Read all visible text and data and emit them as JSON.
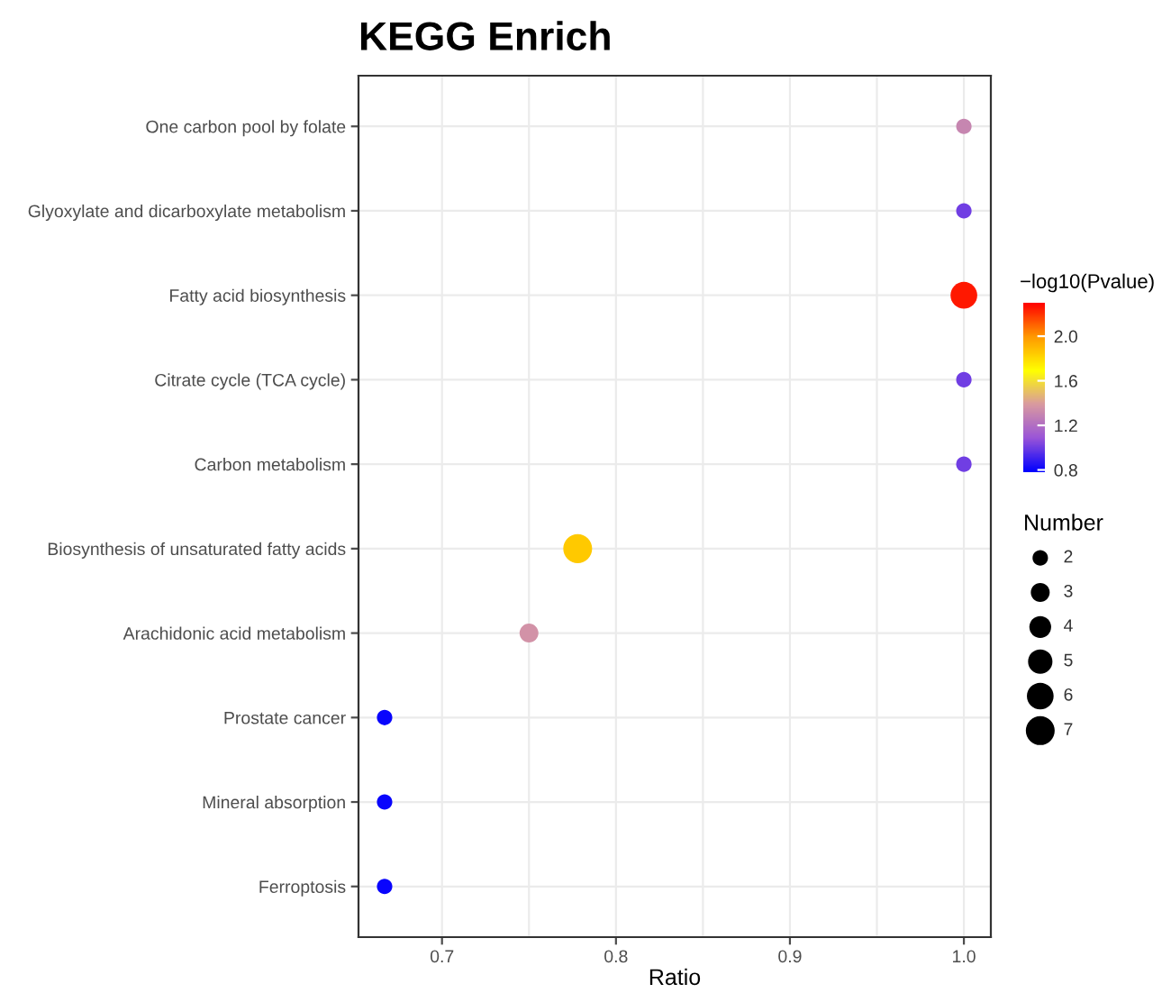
{
  "chart_data": {
    "type": "bubble",
    "title": "KEGG Enrich",
    "xlabel": "Ratio",
    "clabel": "−log10(Pvalue)",
    "legend_title": "Number",
    "orientation": "horizontal",
    "categories": [
      "One carbon pool by folate",
      "Glyoxylate and dicarboxylate metabolism",
      "Fatty acid biosynthesis",
      "Citrate cycle (TCA cycle)",
      "Carbon metabolism",
      "Biosynthesis of unsaturated fatty acids",
      "Arachidonic acid metabolism",
      "Prostate cancer",
      "Mineral absorption",
      "Ferroptosis"
    ],
    "values": [
      1.0,
      1.0,
      1.0,
      1.0,
      1.0,
      0.778,
      0.75,
      0.667,
      0.667,
      0.667
    ],
    "sizes": [
      2,
      2,
      6,
      2,
      2,
      7,
      3,
      2,
      2,
      2
    ],
    "cvalues": [
      1.3,
      1.0,
      2.25,
      1.0,
      1.0,
      1.85,
      1.35,
      0.8,
      0.8,
      0.8
    ],
    "size_legend": [
      2,
      3,
      4,
      5,
      6,
      7
    ],
    "clim": [
      0.78,
      2.3
    ],
    "cticks": [
      0.8,
      1.2,
      1.6,
      {
        "value": 2,
        "label": "2.0"
      }
    ],
    "xlim": [
      0.652,
      1.0155
    ],
    "xticks": [
      0.7,
      0.8,
      0.9,
      {
        "value": 1,
        "label": "1.0"
      }
    ],
    "grid": true
  }
}
